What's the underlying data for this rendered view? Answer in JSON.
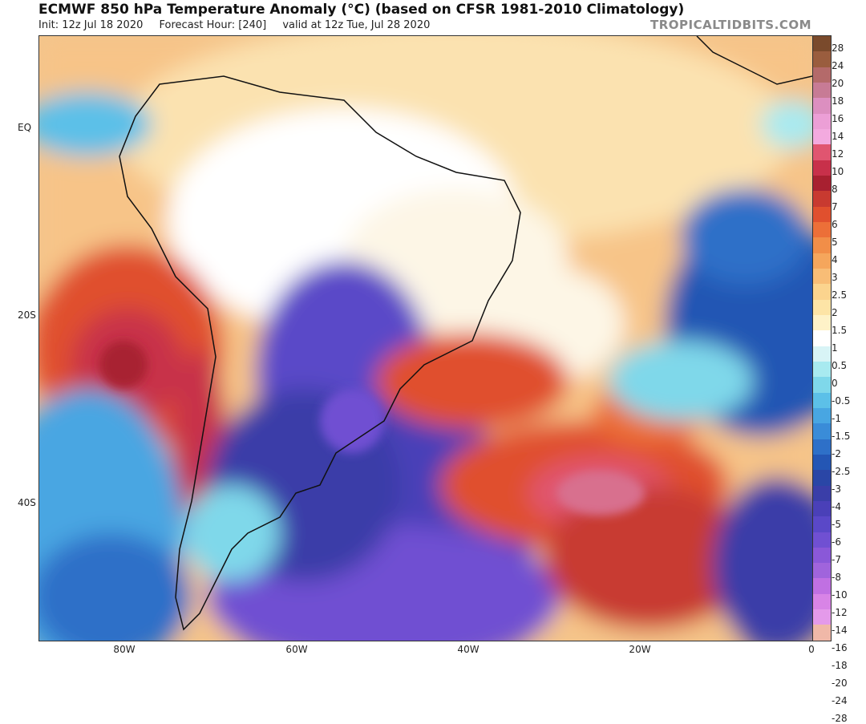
{
  "header": {
    "title": "ECMWF 850 hPa Temperature Anomaly (°C) (based on CFSR 1981-2010 Climatology)",
    "init": "Init: 12z Jul 18 2020",
    "forecast_hour": "Forecast Hour: [240]",
    "valid": "valid at 12z Tue, Jul 28 2020",
    "brand": "TROPICALTIDBITS.COM"
  },
  "map": {
    "lat_labels": [
      "EQ",
      "20S",
      "40S"
    ],
    "lon_labels": [
      "80W",
      "60W",
      "40W",
      "20W",
      "0"
    ]
  },
  "colorbar": {
    "labels": [
      "28",
      "24",
      "20",
      "18",
      "16",
      "14",
      "12",
      "10",
      "8",
      "7",
      "6",
      "5",
      "4",
      "3",
      "2.5",
      "2",
      "1.5",
      "1",
      "0.5",
      "0",
      "-0.5",
      "-1",
      "-1.5",
      "-2",
      "-2.5",
      "-3",
      "-4",
      "-5",
      "-6",
      "-7",
      "-8",
      "-10",
      "-12",
      "-14",
      "-16",
      "-18",
      "-20",
      "-24",
      "-28"
    ],
    "colors": [
      "#7a4a2c",
      "#9a5d3e",
      "#b46a6a",
      "#c77b95",
      "#dc8fc0",
      "#ec9fd6",
      "#f3aadf",
      "#e05570",
      "#c8304a",
      "#a82030",
      "#c83a30",
      "#e0502e",
      "#ec6f38",
      "#f18e48",
      "#f5a65c",
      "#f8bd76",
      "#fbd48e",
      "#fde4a6",
      "#fef2c8",
      "#ffffff",
      "#d8f4f6",
      "#a8eaf0",
      "#7fd8ea",
      "#5cc0e8",
      "#48a6e2",
      "#3a8cd8",
      "#2e70c8",
      "#2456b4",
      "#2a46a6",
      "#3a3ea8",
      "#4a40b8",
      "#5a48c8",
      "#7050d2",
      "#8a58d8",
      "#a064dc",
      "#c070e2",
      "#d884e6",
      "#e49aea",
      "#f0b8a8"
    ],
    "highlight": {
      "warm_max": "#e0507a",
      "cold_core": "#5a46c8"
    }
  }
}
